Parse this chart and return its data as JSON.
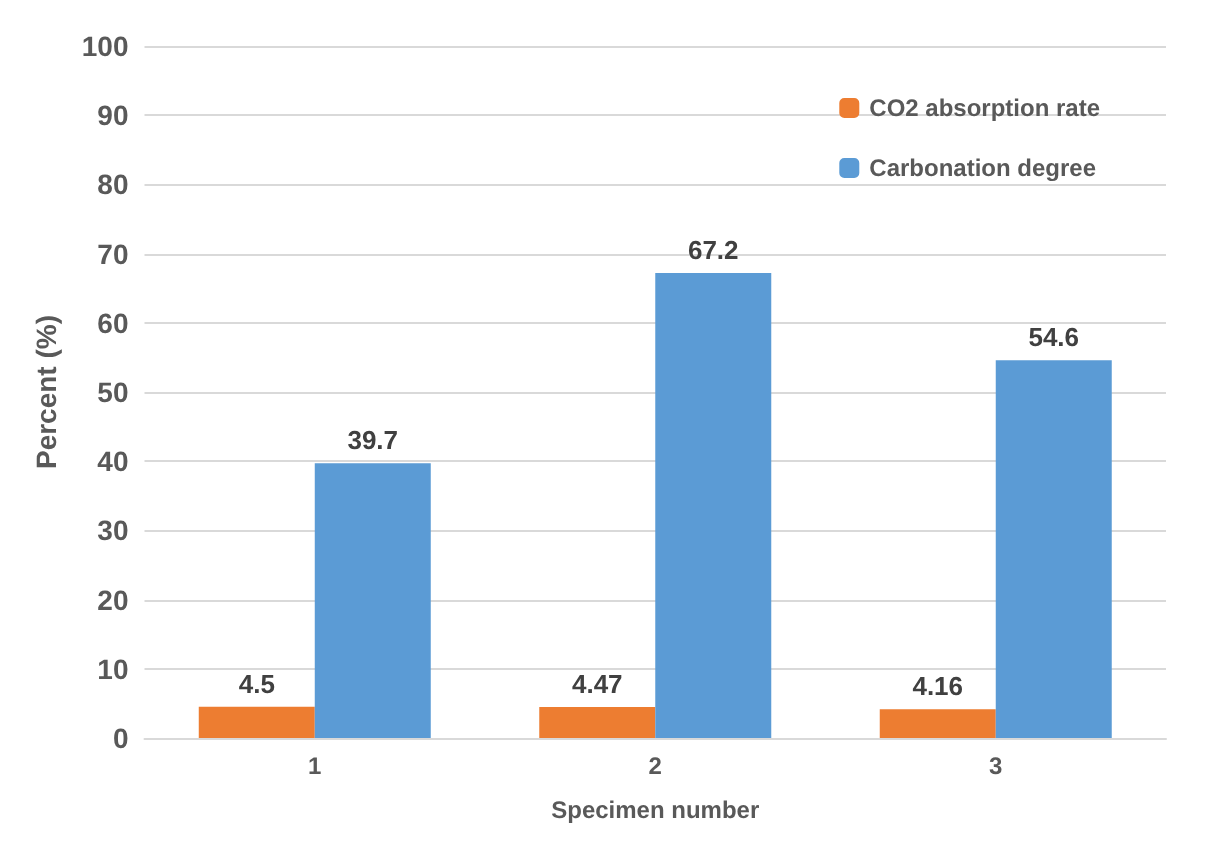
{
  "chart_data": {
    "type": "bar",
    "xlabel": "Specimen number",
    "ylabel": "Percent (%)",
    "categories": [
      "1",
      "2",
      "3"
    ],
    "series": [
      {
        "name": "CO2 absorption rate",
        "color": "#ed7d31",
        "values": [
          4.5,
          4.47,
          4.16
        ]
      },
      {
        "name": "Carbonation degree",
        "color": "#5b9bd5",
        "values": [
          39.7,
          67.2,
          54.6
        ]
      }
    ],
    "ylim": [
      0,
      100
    ],
    "yticks": [
      0,
      10,
      20,
      30,
      40,
      50,
      60,
      70,
      80,
      90,
      100
    ],
    "grid": "y",
    "legend": "top right",
    "data_labels": true
  }
}
